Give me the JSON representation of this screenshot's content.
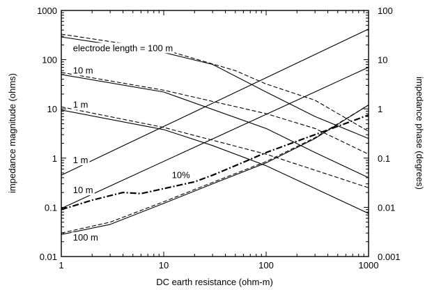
{
  "chart_data": {
    "type": "line",
    "xlabel": "DC earth resistance (ohm-m)",
    "ylabel_left": "impedance magnitude (ohms)",
    "ylabel_right": "impedance phase (degrees)",
    "xscale": "log",
    "yscale_left": "log",
    "yscale_right": "log",
    "xlim": [
      1,
      1000
    ],
    "ylim_left": [
      0.01,
      1000
    ],
    "ylim_right": [
      0.001,
      100
    ],
    "grid": false,
    "x_ticks": [
      1,
      10,
      100,
      1000
    ],
    "x_tick_labels": [
      "1",
      "10",
      "100",
      "1000"
    ],
    "y_left_ticks": [
      0.01,
      0.1,
      1,
      10,
      100,
      1000
    ],
    "y_left_tick_labels": [
      "0.01",
      "0.1",
      "1",
      "10",
      "100",
      "1000"
    ],
    "y_right_ticks": [
      0.001,
      0.01,
      0.1,
      1,
      10,
      100
    ],
    "y_right_tick_labels": [
      "0.001",
      "0.01",
      "0.1",
      "1",
      "10",
      "100"
    ],
    "series": [
      {
        "axis": "left",
        "style": "solid",
        "x": [
          1,
          10,
          30,
          100,
          300,
          1000
        ],
        "y": [
          290,
          140,
          80,
          22,
          7,
          2.5
        ]
      },
      {
        "axis": "left",
        "style": "dashed",
        "x": [
          1,
          10,
          50,
          100,
          300,
          1000
        ],
        "y": [
          330,
          160,
          60,
          32,
          15,
          3.5
        ]
      },
      {
        "axis": "left",
        "style": "solid",
        "x": [
          1,
          10,
          100,
          300,
          1000
        ],
        "y": [
          50,
          22,
          4,
          1.3,
          0.4
        ]
      },
      {
        "axis": "left",
        "style": "dashed",
        "x": [
          1,
          10,
          100,
          300,
          1000
        ],
        "y": [
          55,
          24,
          8,
          4,
          1.2
        ]
      },
      {
        "axis": "left",
        "style": "solid",
        "x": [
          1,
          10,
          30,
          100,
          1000
        ],
        "y": [
          9.5,
          3.8,
          1.8,
          0.7,
          0.075
        ]
      },
      {
        "axis": "left",
        "style": "dashed",
        "x": [
          1,
          10,
          100,
          1000
        ],
        "y": [
          11,
          4.2,
          1.2,
          0.25
        ]
      },
      {
        "axis": "right",
        "style": "solid",
        "x": [
          1,
          1000
        ],
        "y": [
          0.045,
          42
        ]
      },
      {
        "axis": "right",
        "style": "solid",
        "x": [
          1,
          1000
        ],
        "y": [
          0.0095,
          7
        ]
      },
      {
        "axis": "right",
        "style": "solid",
        "x": [
          1,
          3,
          10,
          30,
          100,
          300,
          1000
        ],
        "y": [
          0.0028,
          0.0045,
          0.012,
          0.03,
          0.08,
          0.25,
          1.2
        ]
      },
      {
        "axis": "right",
        "style": "dashed",
        "x": [
          1,
          3,
          10,
          30,
          100,
          300,
          1000
        ],
        "y": [
          0.003,
          0.005,
          0.013,
          0.032,
          0.085,
          0.26,
          1.2
        ]
      },
      {
        "axis": "right",
        "style": "dashdot",
        "x": [
          1,
          2,
          4,
          6,
          10,
          20,
          30,
          50,
          100,
          300,
          1000
        ],
        "y": [
          0.009,
          0.014,
          0.02,
          0.019,
          0.024,
          0.033,
          0.045,
          0.07,
          0.13,
          0.3,
          0.75
        ]
      }
    ],
    "annotations": [
      {
        "id": "el100",
        "text": "electrode length = 100 m",
        "x": 1.3,
        "y_left": 170
      },
      {
        "id": "m10a",
        "text": "10 m",
        "x": 1.3,
        "y_left": 60
      },
      {
        "id": "m1a",
        "text": "1 m",
        "x": 1.3,
        "y_left": 12
      },
      {
        "id": "m1b",
        "text": "1 m",
        "x": 1.3,
        "y_left": 0.9
      },
      {
        "id": "m10b",
        "text": "10 m",
        "x": 1.3,
        "y_left": 0.22
      },
      {
        "id": "m100",
        "text": "100 m",
        "x": 1.3,
        "y_left": 0.024
      },
      {
        "id": "pct",
        "text": "10%",
        "x": 12,
        "y_left": 0.45
      }
    ]
  }
}
